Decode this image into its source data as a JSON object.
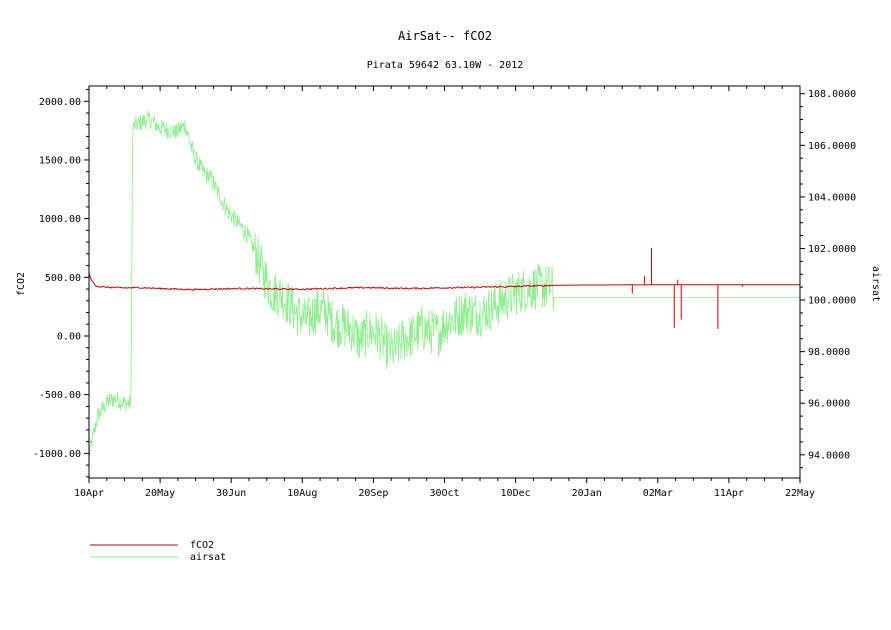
{
  "chart_data": {
    "type": "line",
    "title": "AirSat-- fCO2",
    "subtitle": "Pirata 59642 63.10W - 2012",
    "ylabel_left": "fCO2",
    "ylabel_right": "airsat",
    "x_tick_labels": [
      "10Apr",
      "20May",
      "30Jun",
      "10Aug",
      "20Sep",
      "30Oct",
      "10Dec",
      "20Jan",
      "02Mar",
      "11Apr",
      "22May"
    ],
    "y_left_ticks": [
      2000,
      1500,
      1000,
      500,
      0,
      -500,
      -1000
    ],
    "y_left_tick_labels": [
      "2000.00",
      "1500.00",
      "1000.00",
      "500.00",
      "0.00",
      "-500.00",
      "-1000.00"
    ],
    "y_left_range": [
      -1210,
      2130
    ],
    "y_right_ticks": [
      108,
      106,
      104,
      102,
      100,
      98,
      96,
      94
    ],
    "y_right_tick_labels": [
      "108.0000",
      "106.0000",
      "104.0000",
      "102.0000",
      "100.0000",
      "98.0000",
      "96.0000",
      "94.0000"
    ],
    "y_right_range": [
      93.1,
      108.3
    ],
    "x_range_days": [
      0,
      407
    ],
    "grid": false,
    "legend_position": "bottom-left",
    "series": [
      {
        "name": "fCO2",
        "axis": "left",
        "color": "#cc0000",
        "x": [
          0,
          1,
          2,
          3,
          4,
          6,
          10,
          20,
          30,
          40,
          50,
          60,
          70,
          80,
          90,
          100,
          110,
          120,
          125,
          130,
          140,
          150,
          160,
          170,
          180,
          190,
          200,
          210,
          220,
          230,
          240,
          250,
          260,
          266,
          280,
          300,
          310,
          315,
          320,
          330,
          340,
          350,
          360,
          370,
          380,
          390,
          400,
          407
        ],
        "values": [
          540,
          490,
          460,
          445,
          430,
          420,
          415,
          410,
          412,
          405,
          400,
          395,
          400,
          403,
          405,
          402,
          400,
          398,
          400,
          402,
          406,
          410,
          412,
          408,
          405,
          406,
          410,
          412,
          414,
          418,
          420,
          425,
          428,
          432,
          434,
          435,
          436,
          435,
          436,
          436,
          436,
          436,
          436,
          436,
          436,
          436,
          436,
          436
        ]
      },
      {
        "name": "airsat",
        "axis": "right",
        "color": "#90ee90",
        "x": [
          0,
          5,
          10,
          15,
          20,
          24,
          25,
          30,
          35,
          40,
          45,
          50,
          55,
          60,
          65,
          70,
          75,
          80,
          85,
          90,
          95,
          100,
          105,
          110,
          115,
          120,
          125,
          130,
          135,
          140,
          145,
          150,
          155,
          160,
          165,
          170,
          175,
          180,
          185,
          190,
          195,
          200,
          205,
          210,
          215,
          220,
          225,
          230,
          235,
          240,
          245,
          250,
          255,
          260,
          265,
          266,
          280,
          300,
          320,
          340,
          360,
          380,
          400,
          407
        ],
        "values": [
          94.0,
          95.5,
          96.0,
          96.2,
          96.0,
          96.0,
          106.7,
          106.9,
          107.0,
          106.7,
          106.6,
          106.5,
          106.8,
          105.6,
          105.0,
          104.7,
          104.0,
          103.4,
          103.0,
          102.6,
          101.9,
          101.0,
          100.3,
          100.2,
          99.8,
          99.4,
          99.2,
          99.6,
          99.6,
          99.1,
          99.0,
          98.9,
          98.4,
          98.8,
          98.7,
          98.2,
          98.0,
          98.5,
          98.6,
          98.9,
          98.8,
          98.7,
          99.2,
          99.3,
          99.6,
          99.5,
          99.5,
          99.7,
          99.9,
          100.1,
          100.3,
          100.4,
          100.5,
          100.5,
          100.5,
          100.1,
          100.1,
          100.1,
          100.1,
          100.1,
          100.1,
          100.1,
          100.1,
          100.1
        ]
      }
    ],
    "fco2_spikes": [
      {
        "x": 311,
        "value": 360
      },
      {
        "x": 318,
        "value": 510
      },
      {
        "x": 322,
        "value": 750
      },
      {
        "x": 335,
        "value": 70
      },
      {
        "x": 337,
        "value": 480
      },
      {
        "x": 339,
        "value": 140
      },
      {
        "x": 360,
        "value": 60
      },
      {
        "x": 374,
        "value": 420
      }
    ]
  },
  "legend": {
    "fco2_label": "fCO2",
    "airsat_label": "airsat",
    "fco2_color": "#cc0000",
    "airsat_color": "#90ee90"
  }
}
